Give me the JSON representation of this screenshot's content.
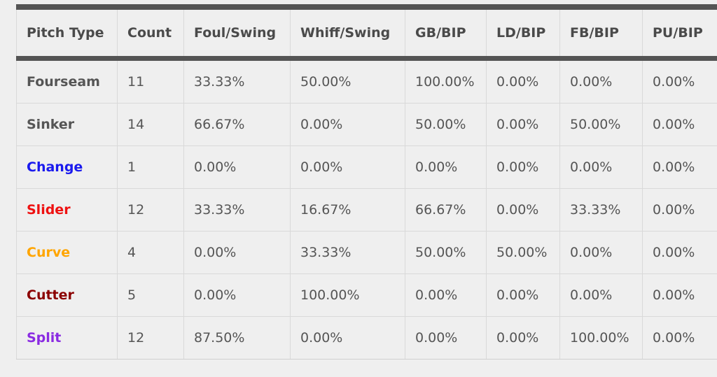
{
  "table": {
    "headers": [
      "Pitch Type",
      "Count",
      "Foul/Swing",
      "Whiff/Swing",
      "GB/BIP",
      "LD/BIP",
      "FB/BIP",
      "PU/BIP"
    ],
    "rows": [
      {
        "pitch": "Fourseam",
        "color": "#555555",
        "values": [
          "11",
          "33.33%",
          "50.00%",
          "100.00%",
          "0.00%",
          "0.00%",
          "0.00%"
        ]
      },
      {
        "pitch": "Sinker",
        "color": "#555555",
        "values": [
          "14",
          "66.67%",
          "0.00%",
          "50.00%",
          "0.00%",
          "50.00%",
          "0.00%"
        ]
      },
      {
        "pitch": "Change",
        "color": "#1a1aee",
        "values": [
          "1",
          "0.00%",
          "0.00%",
          "0.00%",
          "0.00%",
          "0.00%",
          "0.00%"
        ]
      },
      {
        "pitch": "Slider",
        "color": "#ee1111",
        "values": [
          "12",
          "33.33%",
          "16.67%",
          "66.67%",
          "0.00%",
          "33.33%",
          "0.00%"
        ]
      },
      {
        "pitch": "Curve",
        "color": "#ffa500",
        "values": [
          "4",
          "0.00%",
          "33.33%",
          "50.00%",
          "50.00%",
          "0.00%",
          "0.00%"
        ]
      },
      {
        "pitch": "Cutter",
        "color": "#8b0000",
        "values": [
          "5",
          "0.00%",
          "100.00%",
          "0.00%",
          "0.00%",
          "0.00%",
          "0.00%"
        ]
      },
      {
        "pitch": "Split",
        "color": "#8a2be2",
        "values": [
          "12",
          "87.50%",
          "0.00%",
          "0.00%",
          "0.00%",
          "100.00%",
          "0.00%"
        ]
      }
    ]
  }
}
